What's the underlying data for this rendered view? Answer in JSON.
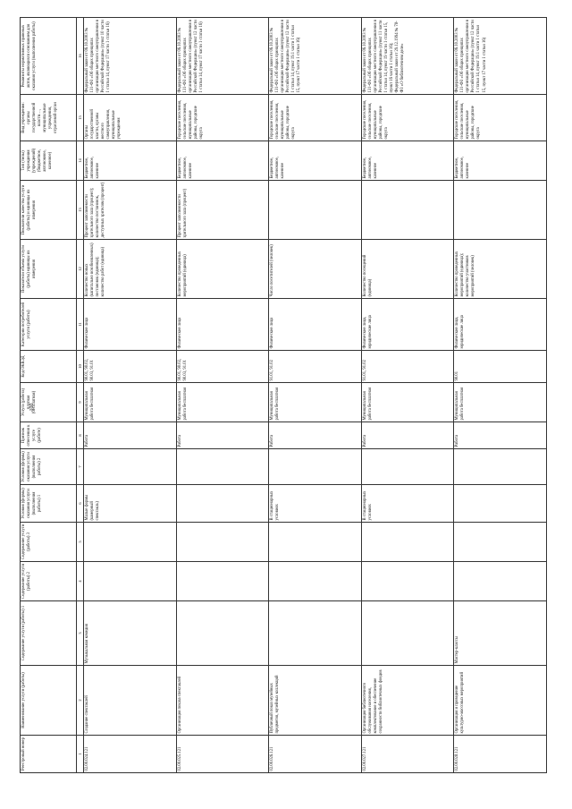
{
  "page_number": "100",
  "columns": [
    "Реестровый номер",
    "Наименование услуги (работы)",
    "Содержание услуги (работы) 1",
    "Содержание услуги (работы) 2",
    "Содержание услуги (работы) 3",
    "Условия (формы) оказания услуги (выполнения работы) 1",
    "Условия (формы) оказания услуги (выполнения работы) 2",
    "Признак отнесения к услуге (работе)",
    "Услуга (работа) платная (бесплатная)",
    "Код ОКВЭД",
    "Категории потребителей услуги (работы)",
    "Показатели объема услуги (работы) единицы их измерения",
    "Показатели качества услуги (работы) и единицы их измерения",
    "Тип (типы) учреждения (учреждений) (бюджетное, автономное, казенное)",
    "Вид учреждения: органы государственной власти…, муниципальные учреждения, отраслевой орган",
    "Реквизиты нормативных правовых актов, являющихся основанием для оказания услуги (выполнения работы)"
  ],
  "column_numbers": [
    "1",
    "2",
    "3",
    "4",
    "5",
    "6",
    "7",
    "8",
    "9",
    "10",
    "11",
    "12",
    "13",
    "14",
    "15",
    "16"
  ],
  "rows": [
    {
      "id": "02.00.024.121",
      "name": "Создание спектаклей",
      "content1": "Музыкальная комедия",
      "content2": "",
      "content3": "",
      "cond1": "Малые формы (камерный спектакль)",
      "cond2": "",
      "sign": "Работа",
      "paid": "Муниципальная работа бесплатная",
      "okved": "90.01, 90.02, 90.03, 91.01",
      "consumers": "Физические лица",
      "volume": "Количество новых (капитально возобновленных) постановок (единица); количество работ (единица)",
      "quality": "Процент заполняемости зрительного зала (процент); количество постановок, доступных зрителям (процент)",
      "type": "Бюджетное, автономное, казенное",
      "kind": "Органы государственной власти, органы местного самоуправления, муниципальные учреждения",
      "acts": "Федеральный закон от 06.10.2003 № 131-ФЗ «Об общих принципах организации местного самоуправления в Российской Федерации» (пункт 10 части 1 статьи 14, пункт 17 части 1 статьи 16)"
    },
    {
      "id": "02.00.025.121",
      "name": "Организация показа спектаклей",
      "content1": "",
      "content2": "",
      "content3": "",
      "cond1": "",
      "cond2": "",
      "sign": "Работа",
      "paid": "Муниципальная работа бесплатная",
      "okved": "90.01, 90.02, 90.03, 91.01",
      "consumers": "Физические лица",
      "volume": "Количество проведенных мероприятий (единица)",
      "quality": "Процент заполняемости зрительного зала (процент)",
      "type": "Бюджетное, автономное, казенное",
      "kind": "Городские поселения, сельские поселения, муниципальные районы, городские округа",
      "acts": "Федеральный закон от 06.10.2003 № 131-ФЗ «Об общих принципах организации местного самоуправления в Российской Федерации» (пункт 12 части 1 статьи 14, пункт 17 части 1 статьи 16)"
    },
    {
      "id": "02.00.026.121",
      "name": "Публичный показ музейных предметов, музейных коллекций",
      "content1": "",
      "content2": "",
      "content3": "",
      "cond1": "В стационарных условиях",
      "cond2": "",
      "sign": "Работа",
      "paid": "Муниципальная работа бесплатная",
      "okved": "91.01, 91.02",
      "consumers": "Физические лица",
      "volume": "Число посетителей (человек)",
      "quality": "",
      "type": "Бюджетное, автономное, казенное",
      "kind": "Городские поселения, сельские поселения, муниципальные районы, городские округа",
      "acts": "Федеральный закон от 06.10.2003 № 131-ФЗ «Об общих принципах организации местного самоуправления в Российской Федерации» (пункт 12 части 1 статьи 14, пункт 19.1 части 1 статьи 15, пункт 17 части 1 статьи 16)"
    },
    {
      "id": "02.00.027.121",
      "name": "Организация библиотечного обслуживания населения, комплектование и обеспечение сохранности библиотечных фондов",
      "content1": "",
      "content2": "",
      "content3": "",
      "cond1": "В стационарных условиях",
      "cond2": "",
      "sign": "Работа",
      "paid": "Муниципальная работа бесплатная",
      "okved": "91.01, 91.02",
      "consumers": "Физические лица, юридические лица",
      "volume": "Количество посещений (единица)",
      "quality": "",
      "type": "Бюджетное, автономное, казенное",
      "kind": "Городские поселения, сельские поселения, муниципальные районы, городские округа",
      "acts": "Федеральный закон от 06.10.2003 № 131-ФЗ «Об общих принципах организации местного самоуправления в Российской Федерации» (пункт 11 части 1 статьи 14, пункт 19 части 1 статьи 15, пункт 16 части 1 статьи 16); Федеральный закон от 29.12.1994 № 78-ФЗ «О библиотечном деле»"
    },
    {
      "id": "02.00.028.121",
      "name": "Организация и проведение культурно-массовых мероприятий",
      "content1": "Мастер-классы",
      "content2": "",
      "content3": "",
      "cond1": "",
      "cond2": "",
      "sign": "Работа",
      "paid": "Муниципальная работа бесплатная",
      "okved": "90.01",
      "consumers": "Физические лица, юридические лица",
      "volume": "Количество проведенных мероприятий (единица); количество участников мероприятий (человек)",
      "quality": "",
      "type": "Бюджетное, автономное, казенное",
      "kind": "Городские поселения, сельские поселения, муниципальные районы, городские округа",
      "acts": "Федеральный закон от 06.10.2003 № 131-ФЗ «Об общих принципах организации местного самоуправления в Российской Федерации» (пункт 12 части 1 статьи 14, пункт 19.1 части 1 статьи 15, пункт 17 части 1 статьи 16)"
    }
  ]
}
